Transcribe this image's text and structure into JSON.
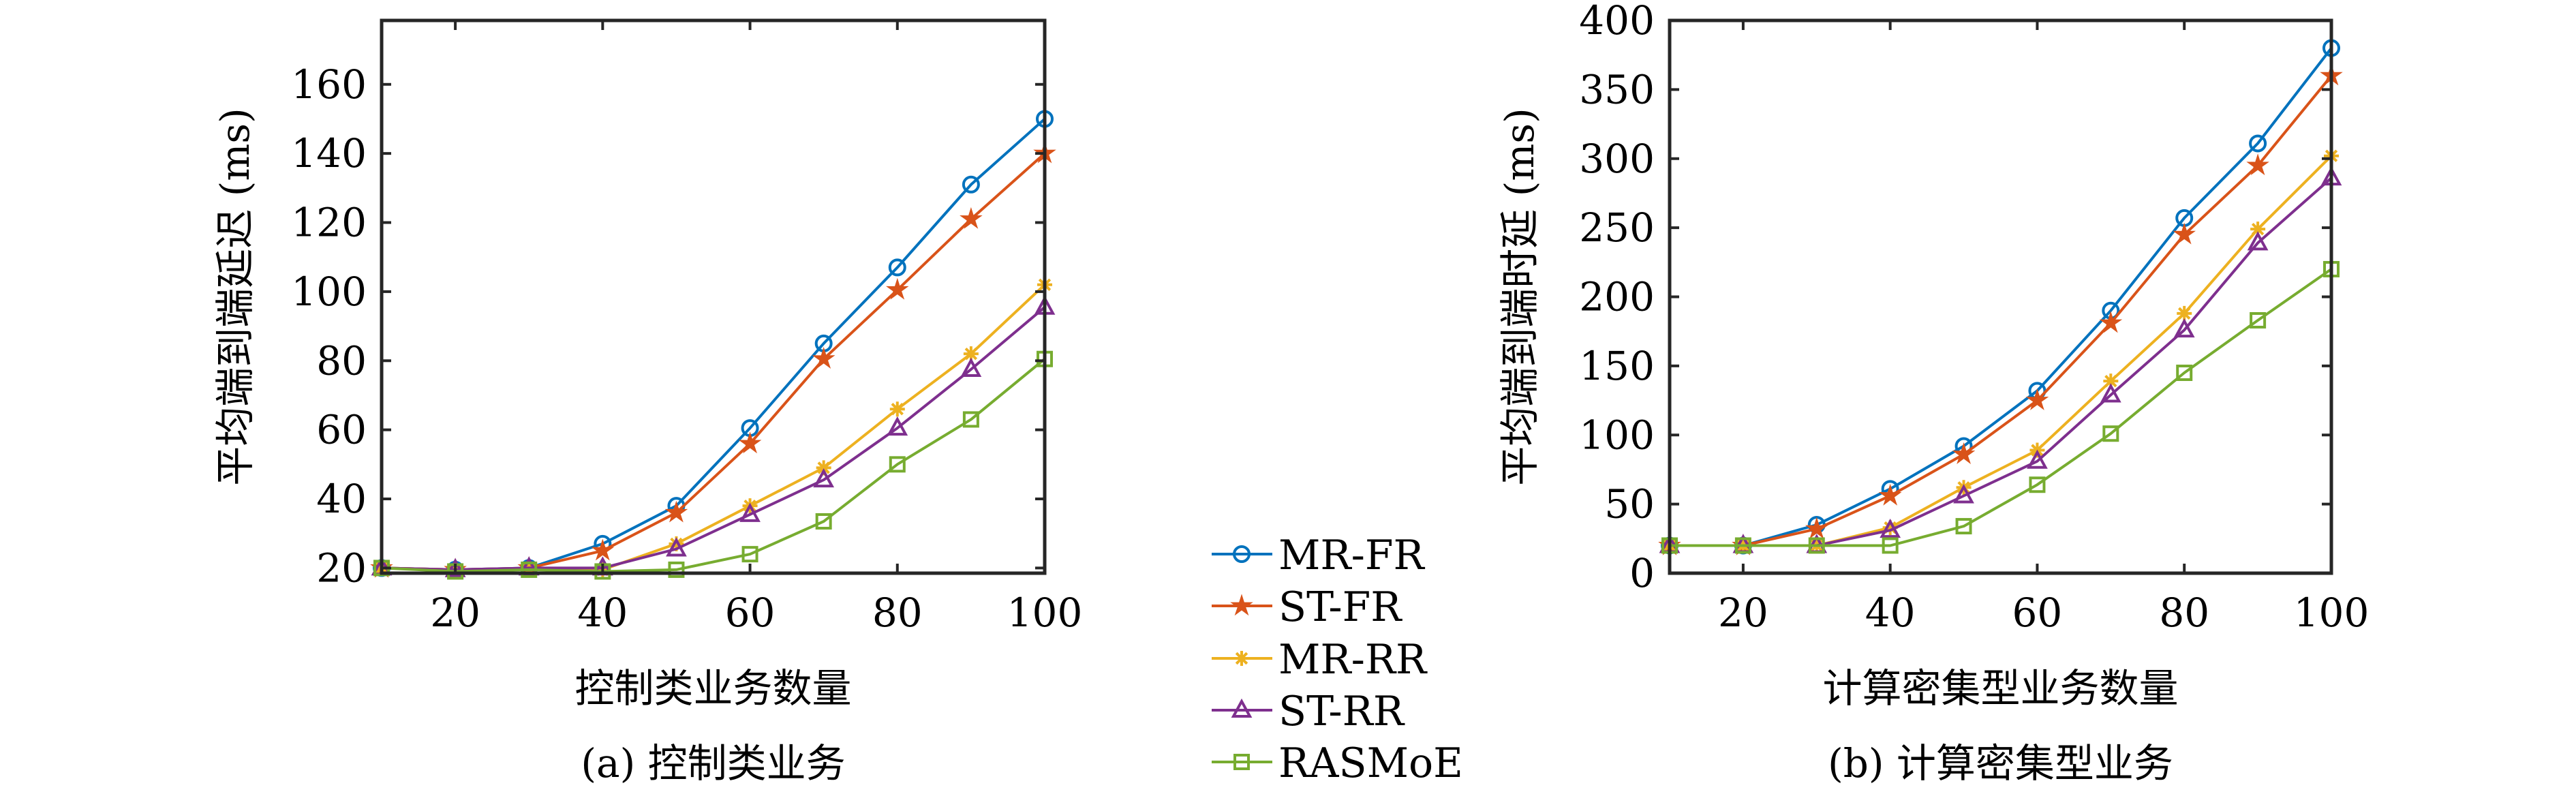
{
  "legend": {
    "placement": "center-between-charts",
    "entries": [
      {
        "name": "MR-FR",
        "color": "#0072BD",
        "marker": "circle"
      },
      {
        "name": "ST-FR",
        "color": "#D95319",
        "marker": "pentagram"
      },
      {
        "name": "MR-RR",
        "color": "#EDB120",
        "marker": "asterisk"
      },
      {
        "name": "ST-RR",
        "color": "#7E2F8E",
        "marker": "triangle"
      },
      {
        "name": "RASMoE",
        "color": "#77AC30",
        "marker": "square"
      }
    ]
  },
  "chart_data": [
    {
      "type": "line",
      "caption": "(a) 控制类业务",
      "xlabel": "控制类业务数量",
      "ylabel": "平均端到端延迟 (ms)",
      "xlim": [
        10,
        100
      ],
      "ylim": [
        18.5,
        178.5
      ],
      "xticks": [
        20,
        40,
        60,
        80,
        100
      ],
      "yticks": [
        20,
        40,
        60,
        80,
        100,
        120,
        140,
        160
      ],
      "grid": false,
      "x": [
        10,
        20,
        30,
        40,
        50,
        60,
        70,
        80,
        90,
        100
      ],
      "series": [
        {
          "name": "MR-FR",
          "values": [
            20,
            19.5,
            20,
            27,
            38,
            60.5,
            85,
            107,
            131,
            150
          ]
        },
        {
          "name": "ST-FR",
          "values": [
            20,
            19.5,
            20,
            25,
            36,
            56,
            80.5,
            100.5,
            121,
            140
          ]
        },
        {
          "name": "MR-RR",
          "values": [
            20,
            19.5,
            19.5,
            19.5,
            27,
            38,
            49,
            66,
            82,
            102
          ]
        },
        {
          "name": "ST-RR",
          "values": [
            20,
            19.5,
            20,
            20,
            25.5,
            35.5,
            45.5,
            60.5,
            77.5,
            95.5
          ]
        },
        {
          "name": "RASMoE",
          "values": [
            20,
            19,
            19.5,
            19,
            19.5,
            24,
            33.5,
            50,
            63,
            80.5
          ]
        }
      ]
    },
    {
      "type": "line",
      "caption": "(b) 计算密集型业务",
      "xlabel": "计算密集型业务数量",
      "ylabel": "平均端到端时延 (ms)",
      "xlim": [
        10,
        100
      ],
      "ylim": [
        0,
        400
      ],
      "xticks": [
        20,
        40,
        60,
        80,
        100
      ],
      "yticks": [
        0,
        50,
        100,
        150,
        200,
        250,
        300,
        350,
        400
      ],
      "grid": false,
      "x": [
        10,
        20,
        30,
        40,
        50,
        60,
        70,
        80,
        90,
        100
      ],
      "series": [
        {
          "name": "MR-FR",
          "values": [
            20,
            20,
            35,
            61,
            92,
            132,
            190,
            257,
            311,
            380
          ]
        },
        {
          "name": "ST-FR",
          "values": [
            20,
            20,
            32,
            56,
            86,
            125,
            181,
            245,
            295,
            360
          ]
        },
        {
          "name": "MR-RR",
          "values": [
            20,
            20,
            20,
            33,
            62,
            89,
            139,
            188,
            249,
            302
          ]
        },
        {
          "name": "ST-RR",
          "values": [
            20,
            20,
            20,
            31,
            56,
            81,
            129,
            176,
            239,
            286
          ]
        },
        {
          "name": "RASMoE",
          "values": [
            20,
            20,
            20,
            20,
            34,
            64,
            101,
            145,
            183,
            220
          ]
        }
      ]
    }
  ]
}
